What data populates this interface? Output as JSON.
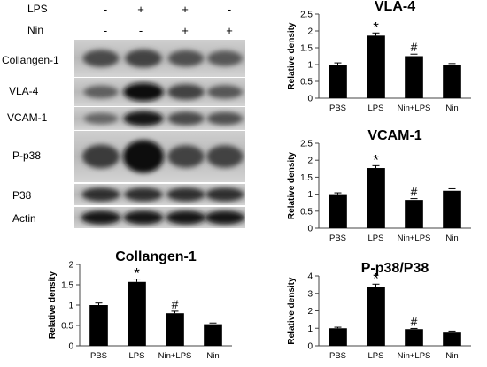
{
  "treatments": {
    "rows": [
      {
        "label": "LPS",
        "signs": [
          "-",
          "+",
          "+",
          "-"
        ]
      },
      {
        "label": "Nin",
        "signs": [
          "-",
          "-",
          "+",
          "+"
        ]
      }
    ]
  },
  "blots": [
    {
      "label": "Collangen-1",
      "intensity": [
        0.55,
        0.6,
        0.5,
        0.45
      ]
    },
    {
      "label": "VLA-4",
      "intensity": [
        0.4,
        0.95,
        0.6,
        0.45
      ]
    },
    {
      "label": "VCAM-1",
      "intensity": [
        0.35,
        0.9,
        0.55,
        0.5
      ]
    },
    {
      "label": "P-p38",
      "intensity": [
        0.65,
        1.0,
        0.6,
        0.6
      ]
    },
    {
      "label": "P38",
      "intensity": [
        0.75,
        0.75,
        0.75,
        0.75
      ]
    },
    {
      "label": "Actin",
      "intensity": [
        0.9,
        0.9,
        0.9,
        0.9
      ]
    }
  ],
  "colors": {
    "bar": "#000000",
    "axis": "#444444"
  },
  "chart_data": [
    {
      "type": "bar",
      "title": "VLA-4",
      "ylabel": "Relative density",
      "categories": [
        "PBS",
        "LPS",
        "Nin+LPS",
        "Nin"
      ],
      "values": [
        1.0,
        1.86,
        1.25,
        0.98
      ],
      "errors": [
        0.05,
        0.08,
        0.06,
        0.05
      ],
      "annotations": [
        "",
        "*",
        "#",
        ""
      ],
      "ylim": [
        0,
        2.5
      ],
      "yticks": [
        "0",
        "0.5",
        "1",
        "1.5",
        "2",
        "2.5"
      ],
      "ytick_values": [
        0,
        0.5,
        1,
        1.5,
        2,
        2.5
      ]
    },
    {
      "type": "bar",
      "title": "VCAM-1",
      "ylabel": "Relative density",
      "categories": [
        "PBS",
        "LPS",
        "Nin+LPS",
        "Nin"
      ],
      "values": [
        1.0,
        1.77,
        0.83,
        1.1
      ],
      "errors": [
        0.04,
        0.07,
        0.04,
        0.06
      ],
      "annotations": [
        "",
        "*",
        "#",
        ""
      ],
      "ylim": [
        0,
        2.5
      ],
      "yticks": [
        "0",
        "0.5",
        "1",
        "1.5",
        "2",
        "2.5"
      ],
      "ytick_values": [
        0,
        0.5,
        1,
        1.5,
        2,
        2.5
      ]
    },
    {
      "type": "bar",
      "title": "Collangen-1",
      "ylabel": "Relative density",
      "categories": [
        "PBS",
        "LPS",
        "Nin+LPS",
        "Nin"
      ],
      "values": [
        1.0,
        1.57,
        0.8,
        0.53
      ],
      "errors": [
        0.05,
        0.07,
        0.05,
        0.03
      ],
      "annotations": [
        "",
        "*",
        "#",
        ""
      ],
      "ylim": [
        0,
        2
      ],
      "yticks": [
        "0",
        "0.5",
        "1",
        "1.5",
        "2"
      ],
      "ytick_values": [
        0,
        0.5,
        1,
        1.5,
        2
      ]
    },
    {
      "type": "bar",
      "title": "P-p38/P38",
      "ylabel": "Relative density",
      "categories": [
        "PBS",
        "LPS",
        "Nin+LPS",
        "Nin"
      ],
      "values": [
        1.0,
        3.38,
        0.95,
        0.8
      ],
      "errors": [
        0.06,
        0.15,
        0.04,
        0.04
      ],
      "annotations": [
        "",
        "*",
        "#",
        ""
      ],
      "ylim": [
        0,
        4
      ],
      "yticks": [
        "0",
        "1",
        "2",
        "3",
        "4"
      ],
      "ytick_values": [
        0,
        1,
        2,
        3,
        4
      ]
    }
  ]
}
